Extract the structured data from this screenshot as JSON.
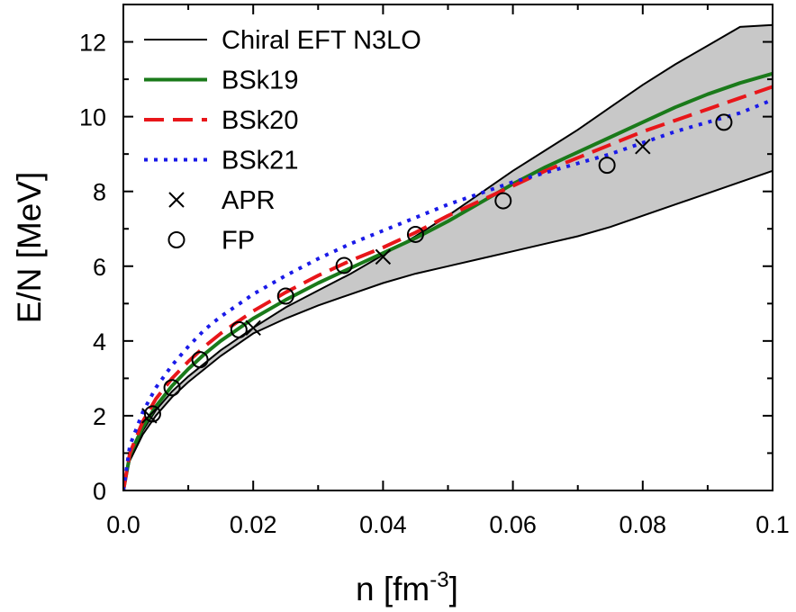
{
  "chart_data": {
    "type": "line",
    "xlabel": "n [fm",
    "xlabel_sup": "-3",
    "xlabel_end": "]",
    "ylabel": "E/N [MeV]",
    "xlim": [
      0,
      0.1
    ],
    "ylim": [
      0,
      13
    ],
    "x_ticks": [
      0.0,
      0.02,
      0.04,
      0.06,
      0.08,
      0.1
    ],
    "x_tick_labels": [
      "0.0",
      "0.02",
      "0.04",
      "0.06",
      "0.08",
      "0.1"
    ],
    "y_ticks": [
      0,
      2,
      4,
      6,
      8,
      10,
      12
    ],
    "y_tick_labels": [
      "0",
      "2",
      "4",
      "6",
      "8",
      "10",
      "12"
    ],
    "legend_position": "top-left",
    "band": {
      "name": "Chiral EFT N3LO",
      "color": "#000000",
      "fill": "#c8c8c8",
      "upper": [
        [
          0.0,
          0.0
        ],
        [
          0.001,
          0.9
        ],
        [
          0.003,
          1.6
        ],
        [
          0.005,
          2.15
        ],
        [
          0.0075,
          2.65
        ],
        [
          0.01,
          3.05
        ],
        [
          0.0125,
          3.4
        ],
        [
          0.015,
          3.75
        ],
        [
          0.0175,
          4.05
        ],
        [
          0.02,
          4.35
        ],
        [
          0.025,
          4.9
        ],
        [
          0.03,
          5.35
        ],
        [
          0.035,
          5.8
        ],
        [
          0.04,
          6.3
        ],
        [
          0.045,
          6.8
        ],
        [
          0.05,
          7.35
        ],
        [
          0.055,
          7.95
        ],
        [
          0.06,
          8.55
        ],
        [
          0.065,
          9.1
        ],
        [
          0.07,
          9.65
        ],
        [
          0.075,
          10.25
        ],
        [
          0.08,
          10.85
        ],
        [
          0.085,
          11.4
        ],
        [
          0.09,
          11.9
        ],
        [
          0.095,
          12.4
        ],
        [
          0.1,
          12.45
        ]
      ],
      "lower": [
        [
          0.0,
          0.0
        ],
        [
          0.001,
          0.8
        ],
        [
          0.003,
          1.5
        ],
        [
          0.005,
          2.0
        ],
        [
          0.0075,
          2.5
        ],
        [
          0.01,
          2.9
        ],
        [
          0.0125,
          3.25
        ],
        [
          0.015,
          3.6
        ],
        [
          0.0175,
          3.9
        ],
        [
          0.02,
          4.2
        ],
        [
          0.025,
          4.6
        ],
        [
          0.03,
          4.95
        ],
        [
          0.035,
          5.25
        ],
        [
          0.04,
          5.55
        ],
        [
          0.045,
          5.8
        ],
        [
          0.05,
          6.0
        ],
        [
          0.055,
          6.2
        ],
        [
          0.06,
          6.4
        ],
        [
          0.065,
          6.6
        ],
        [
          0.07,
          6.8
        ],
        [
          0.075,
          7.05
        ],
        [
          0.08,
          7.35
        ],
        [
          0.085,
          7.65
        ],
        [
          0.09,
          7.95
        ],
        [
          0.095,
          8.25
        ],
        [
          0.1,
          8.55
        ]
      ]
    },
    "series": [
      {
        "name": "BSk19",
        "color": "#1a7a1a",
        "dash": "",
        "points": [
          [
            0.0,
            0.0
          ],
          [
            0.001,
            0.95
          ],
          [
            0.003,
            1.7
          ],
          [
            0.005,
            2.25
          ],
          [
            0.0075,
            2.8
          ],
          [
            0.01,
            3.25
          ],
          [
            0.0125,
            3.65
          ],
          [
            0.015,
            4.0
          ],
          [
            0.02,
            4.6
          ],
          [
            0.025,
            5.1
          ],
          [
            0.03,
            5.55
          ],
          [
            0.035,
            5.95
          ],
          [
            0.04,
            6.35
          ],
          [
            0.045,
            6.75
          ],
          [
            0.05,
            7.2
          ],
          [
            0.055,
            7.7
          ],
          [
            0.06,
            8.2
          ],
          [
            0.065,
            8.65
          ],
          [
            0.07,
            9.05
          ],
          [
            0.075,
            9.45
          ],
          [
            0.08,
            9.85
          ],
          [
            0.085,
            10.25
          ],
          [
            0.09,
            10.6
          ],
          [
            0.095,
            10.9
          ],
          [
            0.1,
            11.15
          ]
        ]
      },
      {
        "name": "BSk20",
        "color": "#e8161a",
        "dash": "22,10",
        "points": [
          [
            0.0,
            0.0
          ],
          [
            0.001,
            1.0
          ],
          [
            0.003,
            1.85
          ],
          [
            0.005,
            2.45
          ],
          [
            0.0075,
            3.0
          ],
          [
            0.01,
            3.45
          ],
          [
            0.0125,
            3.85
          ],
          [
            0.015,
            4.2
          ],
          [
            0.02,
            4.8
          ],
          [
            0.025,
            5.3
          ],
          [
            0.03,
            5.75
          ],
          [
            0.035,
            6.15
          ],
          [
            0.04,
            6.5
          ],
          [
            0.045,
            6.9
          ],
          [
            0.05,
            7.35
          ],
          [
            0.055,
            7.75
          ],
          [
            0.06,
            8.15
          ],
          [
            0.065,
            8.55
          ],
          [
            0.07,
            8.9
          ],
          [
            0.075,
            9.25
          ],
          [
            0.08,
            9.6
          ],
          [
            0.085,
            9.9
          ],
          [
            0.09,
            10.2
          ],
          [
            0.095,
            10.5
          ],
          [
            0.1,
            10.8
          ]
        ]
      },
      {
        "name": "BSk21",
        "color": "#1a1ae8",
        "dash": "4,7",
        "points": [
          [
            0.0,
            0.0
          ],
          [
            0.001,
            1.2
          ],
          [
            0.003,
            2.1
          ],
          [
            0.005,
            2.75
          ],
          [
            0.0075,
            3.35
          ],
          [
            0.01,
            3.85
          ],
          [
            0.0125,
            4.3
          ],
          [
            0.015,
            4.65
          ],
          [
            0.02,
            5.25
          ],
          [
            0.025,
            5.75
          ],
          [
            0.03,
            6.2
          ],
          [
            0.035,
            6.6
          ],
          [
            0.04,
            6.95
          ],
          [
            0.045,
            7.3
          ],
          [
            0.05,
            7.65
          ],
          [
            0.055,
            7.95
          ],
          [
            0.06,
            8.25
          ],
          [
            0.065,
            8.5
          ],
          [
            0.07,
            8.75
          ],
          [
            0.075,
            9.0
          ],
          [
            0.08,
            9.3
          ],
          [
            0.085,
            9.6
          ],
          [
            0.09,
            9.85
          ],
          [
            0.095,
            10.1
          ],
          [
            0.1,
            10.45
          ]
        ]
      },
      {
        "name": "APR",
        "marker": "x",
        "color": "#000000",
        "points": [
          [
            0.004,
            2.0
          ],
          [
            0.02,
            4.35
          ],
          [
            0.04,
            6.25
          ],
          [
            0.08,
            9.2
          ]
        ]
      },
      {
        "name": "FP",
        "marker": "circle",
        "color": "#000000",
        "points": [
          [
            0.0045,
            2.05
          ],
          [
            0.0075,
            2.75
          ],
          [
            0.0118,
            3.5
          ],
          [
            0.0178,
            4.3
          ],
          [
            0.025,
            5.2
          ],
          [
            0.034,
            6.02
          ],
          [
            0.045,
            6.85
          ],
          [
            0.0585,
            7.75
          ],
          [
            0.0745,
            8.7
          ],
          [
            0.0925,
            9.85
          ]
        ]
      }
    ],
    "legend": [
      {
        "label": "Chiral EFT N3LO",
        "kind": "line",
        "color": "#000000",
        "dash": "",
        "width": 2
      },
      {
        "label": "BSk19",
        "kind": "line",
        "color": "#1a7a1a",
        "dash": "",
        "width": 4
      },
      {
        "label": "BSk20",
        "kind": "line",
        "color": "#e8161a",
        "dash": "22,10",
        "width": 4
      },
      {
        "label": "BSk21",
        "kind": "line",
        "color": "#1a1ae8",
        "dash": "4,7",
        "width": 4
      },
      {
        "label": "APR",
        "kind": "x",
        "color": "#000000"
      },
      {
        "label": "FP",
        "kind": "circle",
        "color": "#000000"
      }
    ]
  }
}
